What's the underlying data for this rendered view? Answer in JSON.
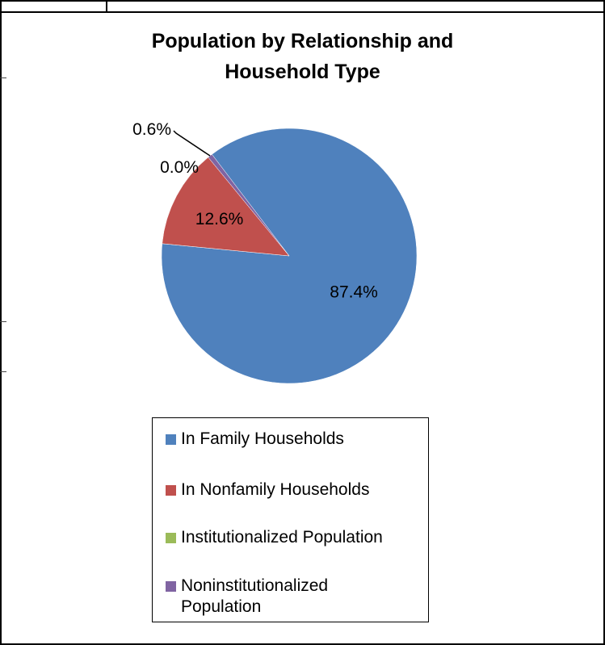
{
  "chart_data": {
    "type": "pie",
    "title_line1": "Population by Relationship and",
    "title_line2": "Household Type",
    "series": [
      {
        "name": "In Family Households",
        "value": 87.4,
        "label": "87.4%",
        "color": "#4F81BD"
      },
      {
        "name": "In Nonfamily Households",
        "value": 12.6,
        "label": "12.6%",
        "color": "#C0504D"
      },
      {
        "name": "Institutionalized Population",
        "value": 0.0,
        "label": "0.0%",
        "color": "#9BBB59"
      },
      {
        "name": "Noninstitutionalized Population",
        "value": 0.6,
        "label": "0.6%",
        "color": "#8064A2"
      }
    ],
    "legend_position": "bottom"
  }
}
